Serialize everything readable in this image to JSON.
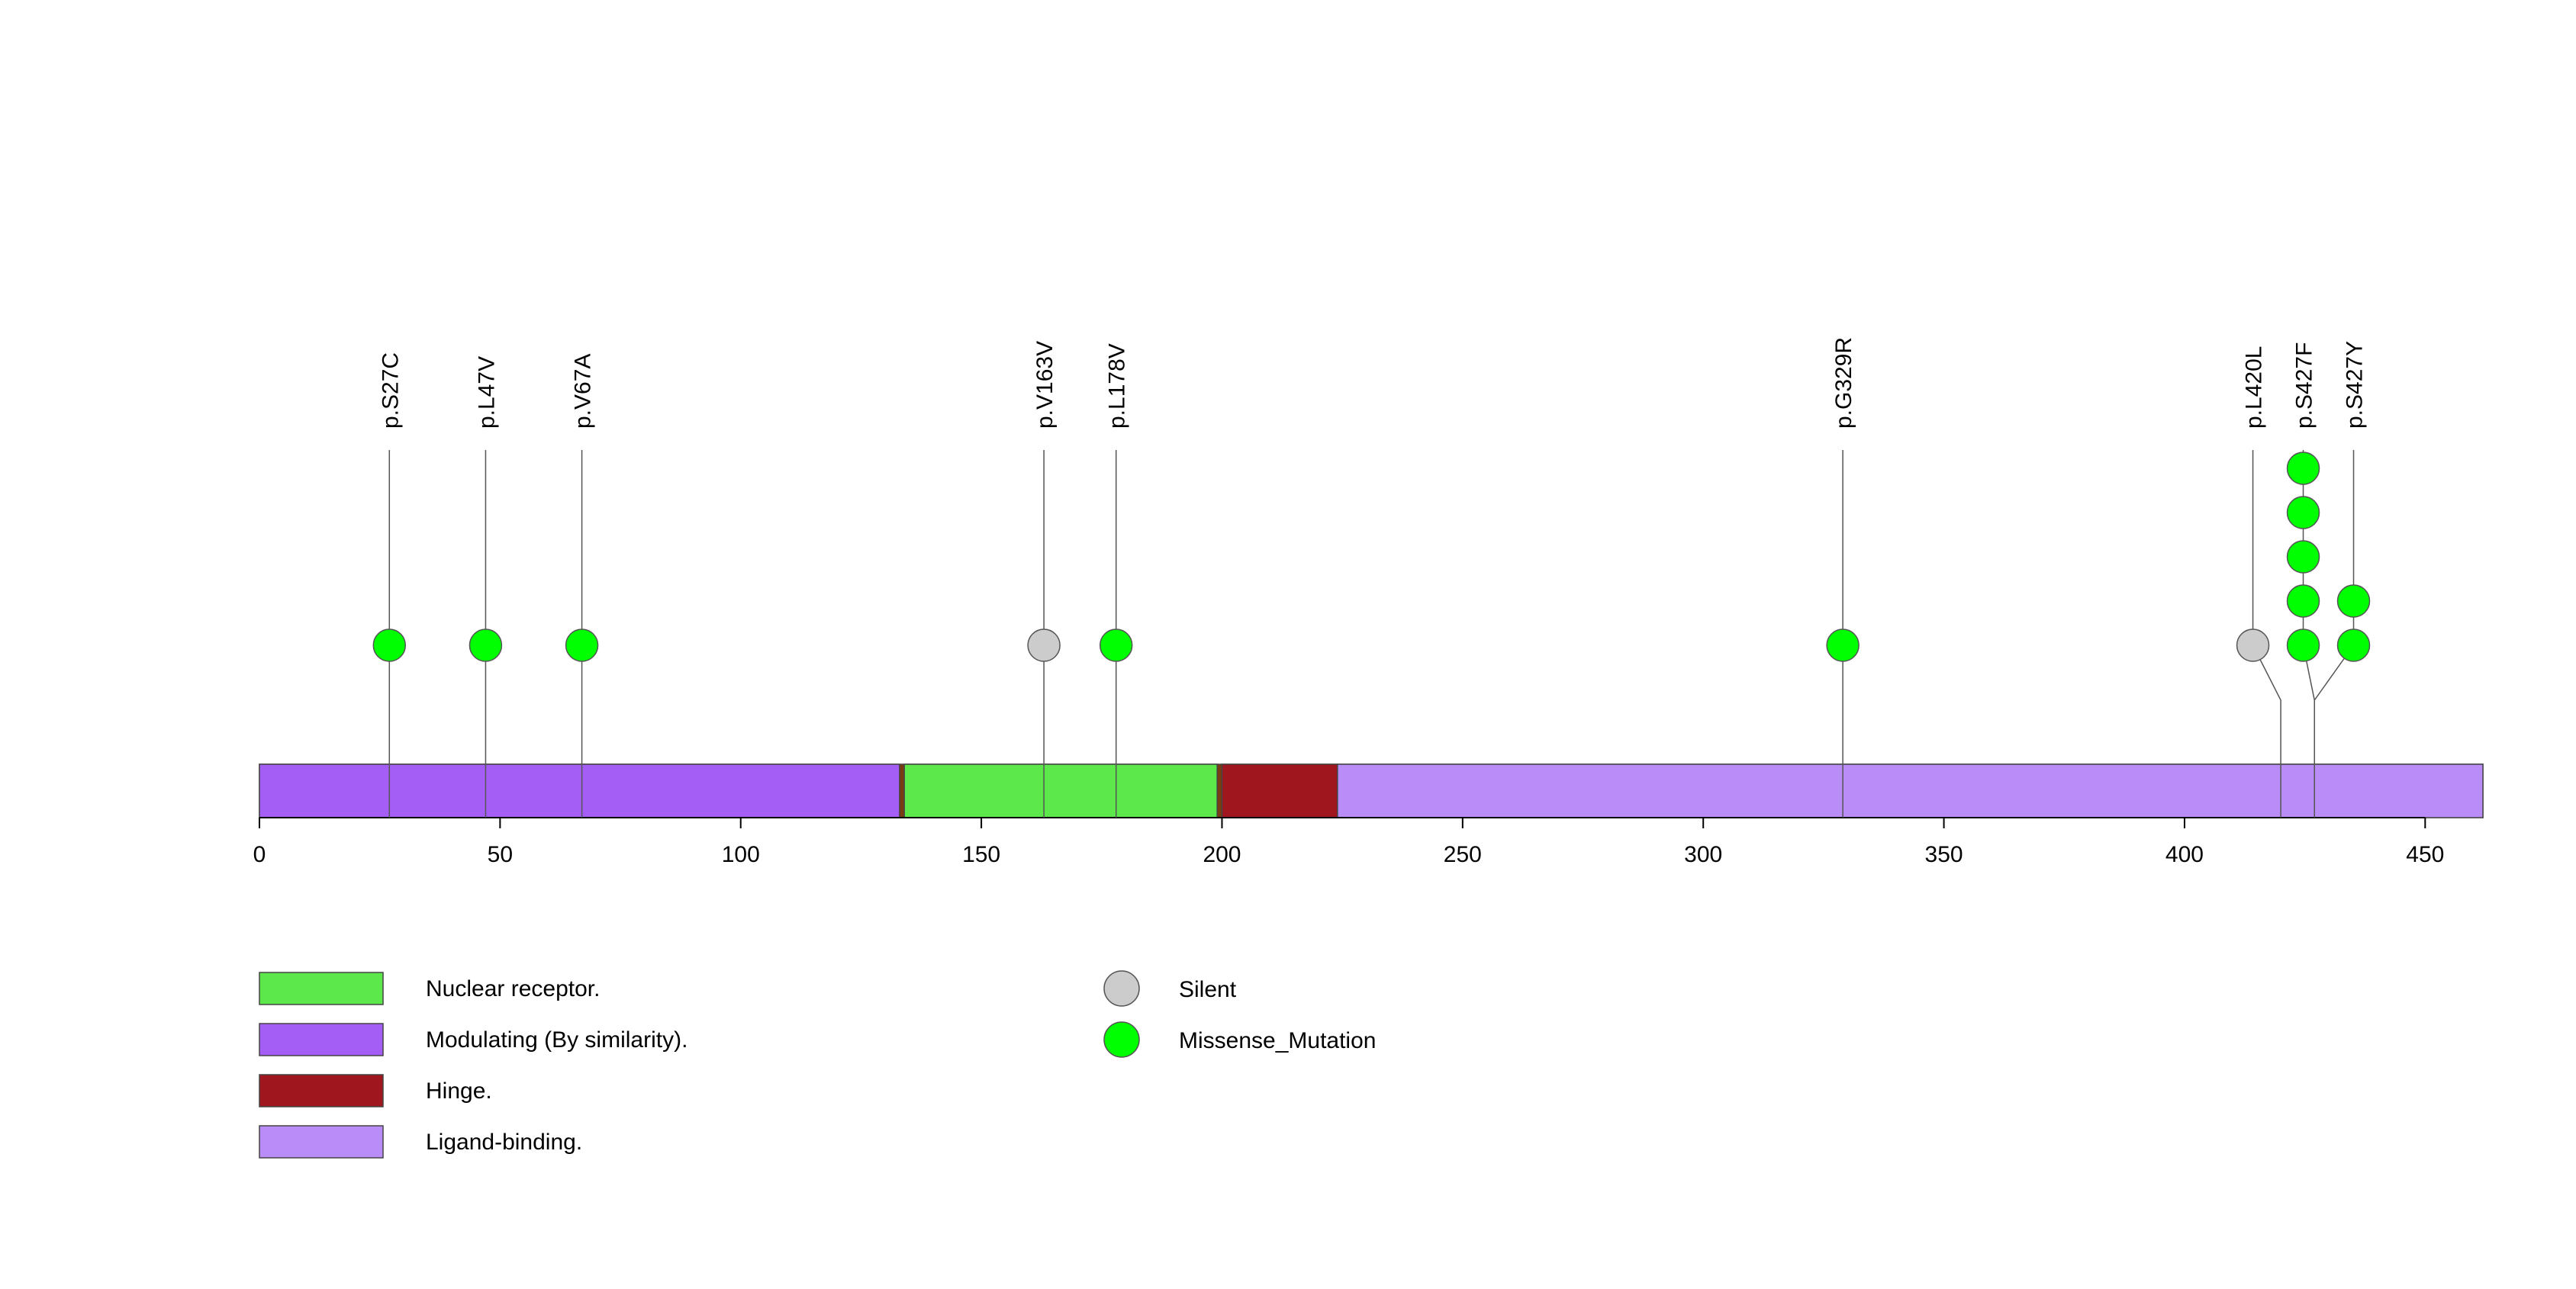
{
  "chart_data": {
    "type": "lollipop",
    "x_axis": {
      "range": [
        0,
        462
      ],
      "ticks": [
        0,
        50,
        100,
        150,
        200,
        250,
        300,
        350,
        400,
        450
      ]
    },
    "protein_length": 462,
    "domains": [
      {
        "name": "Modulating (By similarity).",
        "start": 0,
        "end": 133,
        "color": "#a45ef5"
      },
      {
        "name": "Nuclear receptor.",
        "start": 134,
        "end": 199,
        "color": "#5ce84b"
      },
      {
        "name": "Hinge.",
        "start": 200,
        "end": 224,
        "color": "#a0161f"
      },
      {
        "name": "Ligand-binding.",
        "start": 224,
        "end": 462,
        "color": "#b98cf7"
      }
    ],
    "mutations": [
      {
        "label": "p.S27C",
        "position": 27,
        "count": 1,
        "type": "Missense_Mutation"
      },
      {
        "label": "p.L47V",
        "position": 47,
        "count": 1,
        "type": "Missense_Mutation"
      },
      {
        "label": "p.V67A",
        "position": 67,
        "count": 1,
        "type": "Missense_Mutation"
      },
      {
        "label": "p.V163V",
        "position": 163,
        "count": 1,
        "type": "Silent"
      },
      {
        "label": "p.L178V",
        "position": 178,
        "count": 1,
        "type": "Missense_Mutation"
      },
      {
        "label": "p.G329R",
        "position": 329,
        "count": 1,
        "type": "Missense_Mutation"
      },
      {
        "label": "p.L420L",
        "position": 420,
        "count": 1,
        "type": "Silent"
      },
      {
        "label": "p.S427F",
        "position": 427,
        "count": 5,
        "type": "Missense_Mutation"
      },
      {
        "label": "p.S427Y",
        "position": 427,
        "count": 2,
        "type": "Missense_Mutation"
      }
    ],
    "mutation_types": [
      {
        "name": "Silent",
        "color": "#cccccc"
      },
      {
        "name": "Missense_Mutation",
        "color": "#00ff00"
      }
    ]
  }
}
